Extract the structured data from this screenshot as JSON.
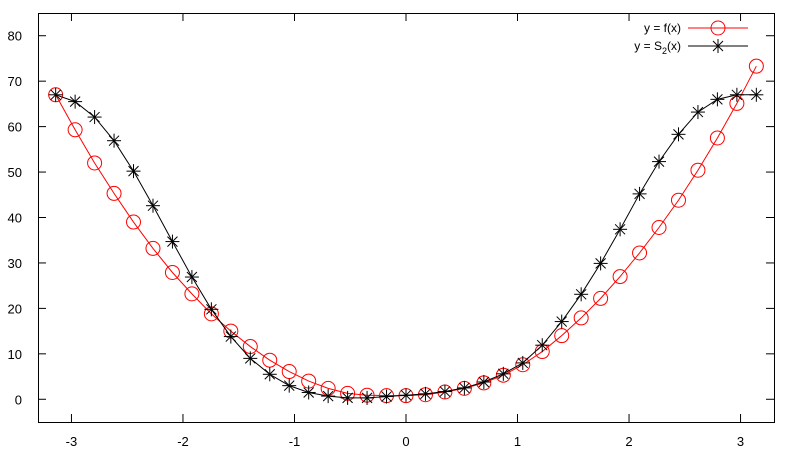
{
  "chart_data": {
    "type": "line",
    "title": "",
    "xlabel": "",
    "ylabel": "",
    "xlim": [
      -3.3,
      3.3
    ],
    "ylim": [
      -5,
      85
    ],
    "grid": false,
    "legend_position": "top-right",
    "x_ticks": [
      -3,
      -2,
      -1,
      0,
      1,
      2,
      3
    ],
    "x_tick_labels": [
      "-3",
      "-2",
      "-1",
      "0",
      "1",
      "2",
      "3"
    ],
    "y_ticks": [
      0,
      10,
      20,
      30,
      40,
      50,
      60,
      70,
      80
    ],
    "y_tick_labels": [
      "0",
      "10",
      "20",
      "30",
      "40",
      "50",
      "60",
      "70",
      "80"
    ],
    "series": [
      {
        "name": "y = f(x)",
        "name_parts": {
          "prefix": "y = f(x)",
          "subscript": "",
          "suffix": ""
        },
        "marker": "circle",
        "color": "#ff0000",
        "x": [
          -3.1416,
          -2.9671,
          -2.7925,
          -2.618,
          -2.4435,
          -2.2689,
          -2.0944,
          -1.9199,
          -1.7453,
          -1.5708,
          -1.3963,
          -1.2217,
          -1.0472,
          -0.8727,
          -0.6981,
          -0.5236,
          -0.3491,
          -0.1745,
          0.0,
          0.1745,
          0.3491,
          0.5236,
          0.6981,
          0.8727,
          1.0472,
          1.2217,
          1.3963,
          1.5708,
          1.7453,
          1.9199,
          2.0944,
          2.2689,
          2.4435,
          2.618,
          2.7925,
          2.9671,
          3.1416
        ],
        "y": [
          67.0,
          59.3,
          52.0,
          45.3,
          39.0,
          33.2,
          27.9,
          23.2,
          18.8,
          15.0,
          11.6,
          8.6,
          6.1,
          4.0,
          2.4,
          1.3,
          0.9,
          0.8,
          0.8,
          1.0,
          1.6,
          2.4,
          3.6,
          5.3,
          7.6,
          10.5,
          14.0,
          17.9,
          22.2,
          27.0,
          32.2,
          37.8,
          43.8,
          50.4,
          57.5,
          65.1,
          73.3
        ]
      },
      {
        "name": "y = S2(x)",
        "name_parts": {
          "prefix": "y = S",
          "subscript": "2",
          "suffix": "(x)"
        },
        "marker": "asterisk",
        "color": "#000000",
        "x": [
          -3.1416,
          -2.9671,
          -2.7925,
          -2.618,
          -2.4435,
          -2.2689,
          -2.0944,
          -1.9199,
          -1.7453,
          -1.5708,
          -1.3963,
          -1.2217,
          -1.0472,
          -0.8727,
          -0.6981,
          -0.5236,
          -0.3491,
          -0.1745,
          0.0,
          0.1745,
          0.3491,
          0.5236,
          0.6981,
          0.8727,
          1.0472,
          1.2217,
          1.3963,
          1.5708,
          1.7453,
          1.9199,
          2.0944,
          2.2689,
          2.4435,
          2.618,
          2.7925,
          2.9671,
          3.1416
        ],
        "y": [
          67.0,
          65.5,
          62.1,
          56.9,
          50.2,
          42.6,
          34.7,
          26.9,
          19.8,
          13.8,
          9.0,
          5.5,
          3.0,
          1.5,
          0.7,
          0.3,
          0.3,
          0.6,
          0.9,
          1.2,
          1.7,
          2.5,
          3.8,
          5.6,
          8.0,
          11.9,
          17.1,
          23.1,
          29.9,
          37.4,
          45.2,
          52.3,
          58.3,
          63.2,
          66.0,
          67.0,
          67.0
        ]
      }
    ]
  }
}
